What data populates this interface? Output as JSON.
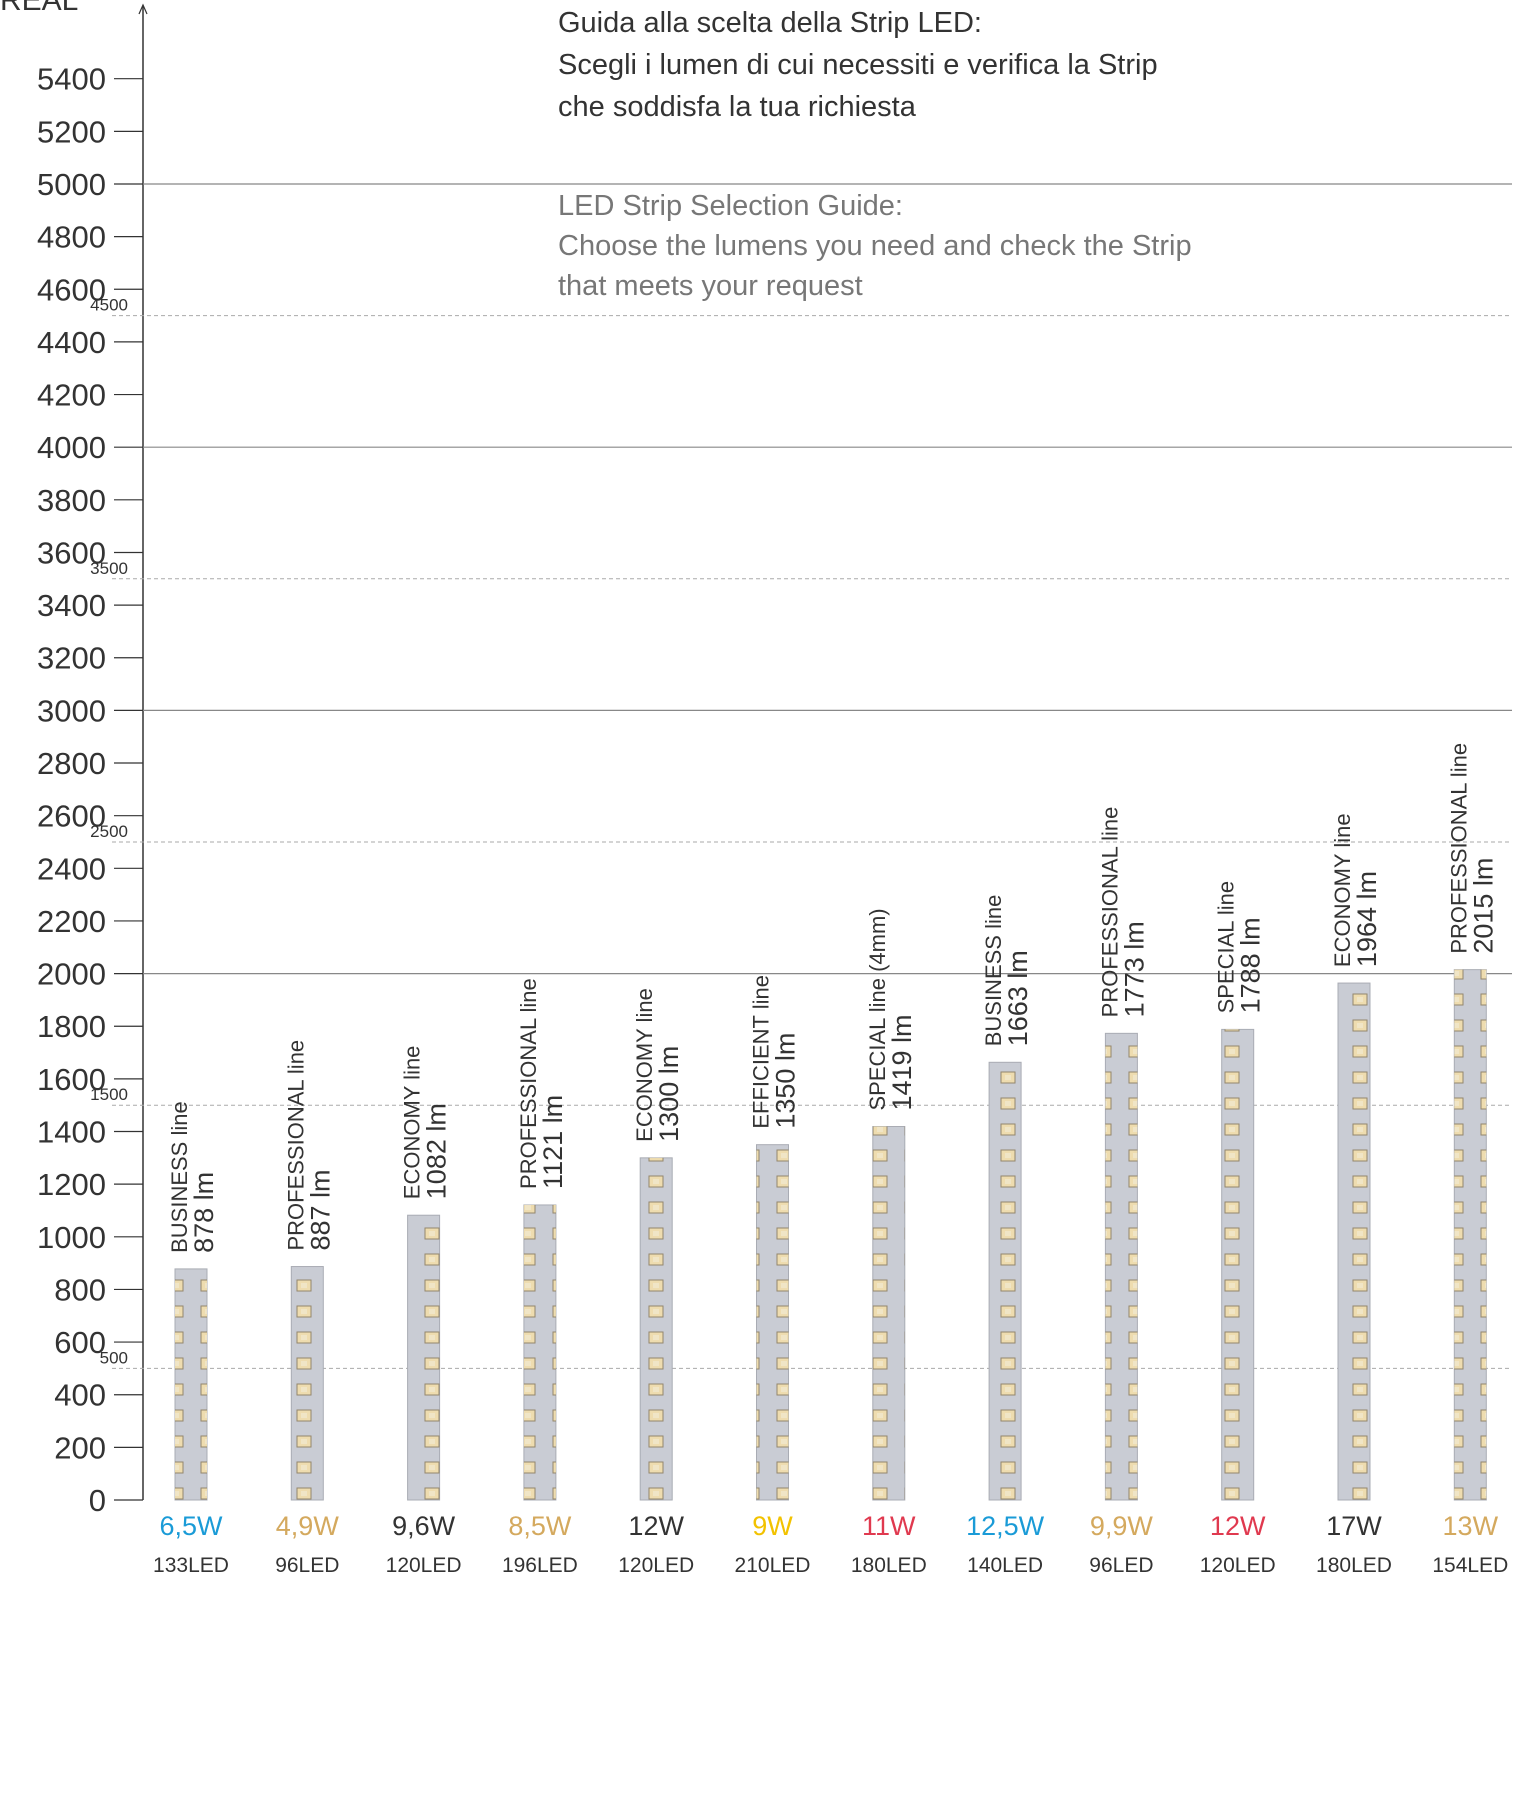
{
  "chart_data": {
    "type": "bar",
    "axis_label": "REAL",
    "title_it": [
      "Guida alla scelta della Strip LED:",
      "Scegli i lumen di cui necessiti e verifica la Strip",
      "che soddisfa la tua richiesta"
    ],
    "title_en": [
      "LED Strip Selection Guide:",
      "Choose the lumens you need and check the Strip",
      "that meets your request"
    ],
    "categories": [
      "BUSINESS line",
      "PROFESSIONAL line",
      "ECONOMY line",
      "PROFESSIONAL line",
      "ECONOMY line",
      "EFFICIENT line",
      "SPECIAL line (4mm)",
      "BUSINESS line",
      "PROFESSIONAL line",
      "SPECIAL line",
      "ECONOMY line",
      "PROFESSIONAL line"
    ],
    "values": [
      878,
      887,
      1082,
      1121,
      1300,
      1350,
      1419,
      1663,
      1773,
      1788,
      1964,
      2015
    ],
    "value_labels": [
      "878 lm",
      "887 lm",
      "1082 lm",
      "1121 lm",
      "1300 lm",
      "1350 lm",
      "1419 lm",
      "1663 lm",
      "1773 lm",
      "1788 lm",
      "1964 lm",
      "2015 lm"
    ],
    "watts": [
      "6,5W",
      "4,9W",
      "9,6W",
      "8,5W",
      "12W",
      "9W",
      "11W",
      "12,5W",
      "9,9W",
      "12W",
      "17W",
      "13W"
    ],
    "watt_colors": [
      "#1a9bd7",
      "#d4a95e",
      "#333333",
      "#d4a95e",
      "#333333",
      "#f2c200",
      "#e0394f",
      "#1a9bd7",
      "#d4a95e",
      "#e0394f",
      "#333333",
      "#d4a95e"
    ],
    "leds": [
      "133LED",
      "96LED",
      "120LED",
      "196LED",
      "120LED",
      "210LED",
      "180LED",
      "140LED",
      "96LED",
      "120LED",
      "180LED",
      "154LED"
    ],
    "color": "#c9ccd4",
    "ylim": [
      0,
      5680
    ],
    "yticks": [
      0,
      200,
      400,
      600,
      800,
      1000,
      1200,
      1400,
      1600,
      1800,
      2000,
      2200,
      2400,
      2600,
      2800,
      3000,
      3200,
      3400,
      3600,
      3800,
      4000,
      4200,
      4400,
      4600,
      4800,
      5000,
      5200,
      5400
    ],
    "solid_gridlines": [
      2000,
      3000,
      4000,
      5000
    ],
    "dashed_gridlines": [
      500,
      1500,
      2500,
      3500,
      4500
    ]
  }
}
